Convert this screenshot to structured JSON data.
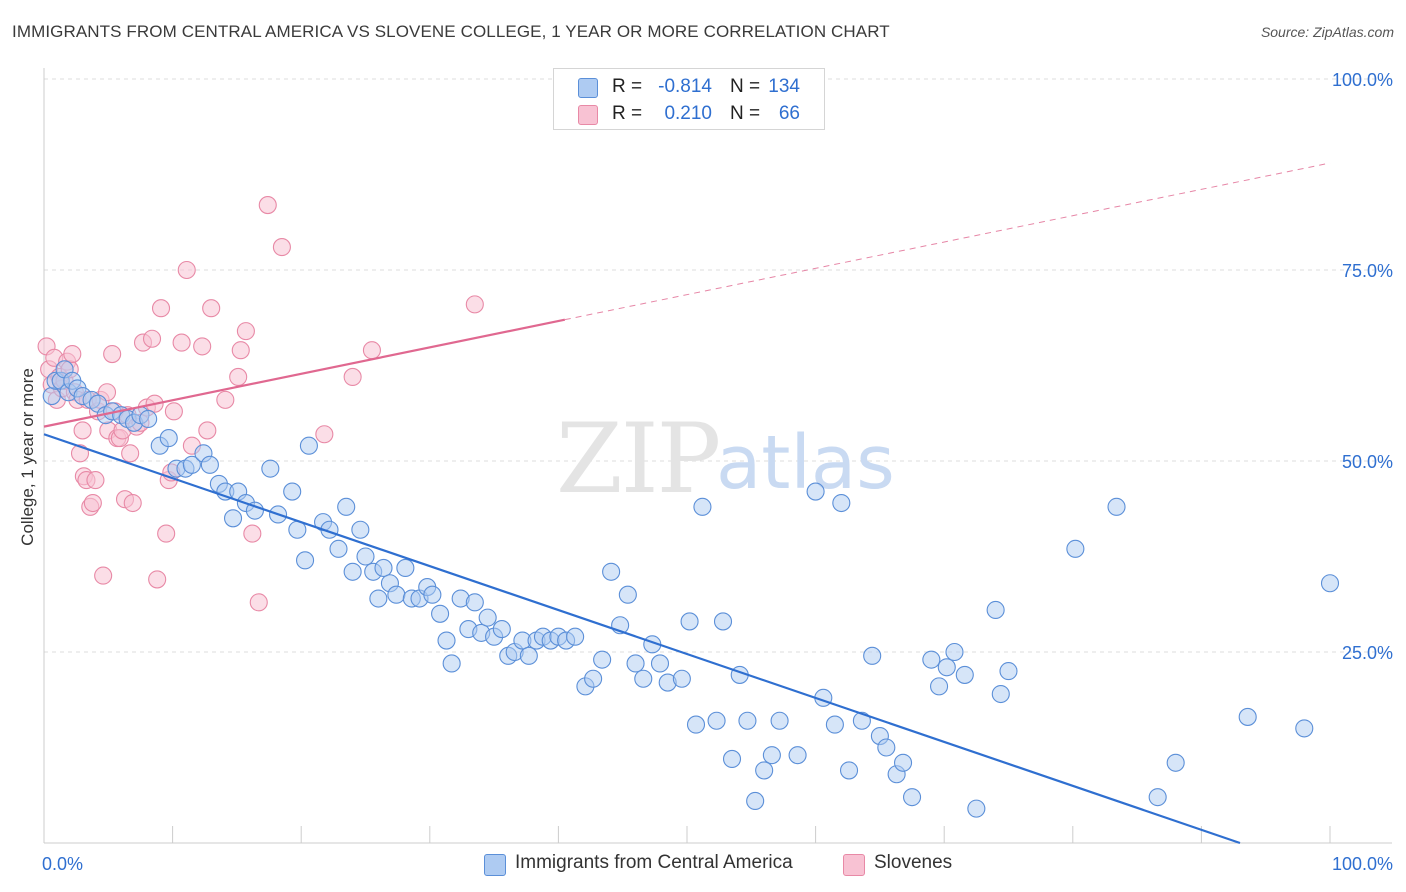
{
  "title": "IMMIGRANTS FROM CENTRAL AMERICA VS SLOVENE COLLEGE, 1 YEAR OR MORE CORRELATION CHART",
  "source": "Source: ZipAtlas.com",
  "watermark": {
    "zip": "ZIP",
    "atlas": "atlas"
  },
  "legend": {
    "series1": {
      "r_label": "R =",
      "r_value": "-0.814",
      "n_label": "N =",
      "n_value": "134"
    },
    "series2": {
      "r_label": "R =",
      "r_value": "0.210",
      "n_label": "N =",
      "n_value": "66"
    }
  },
  "bottom_legend": {
    "series1": "Immigrants from Central America",
    "series2": "Slovenes"
  },
  "colors": {
    "blue_fill": "#aecbf2",
    "blue_stroke": "#5b8fd8",
    "blue_line": "#2f6fd0",
    "pink_fill": "#f8c2d3",
    "pink_stroke": "#e889a6",
    "pink_line": "#e06890",
    "axis_label": "#2f6fd0",
    "grid": "#dddddd"
  },
  "chart_data": {
    "type": "scatter",
    "title": "IMMIGRANTS FROM CENTRAL AMERICA VS SLOVENE COLLEGE, 1 YEAR OR MORE CORRELATION CHART",
    "xlabel": "",
    "ylabel": "College, 1 year or more",
    "xlim": [
      0,
      100
    ],
    "ylim": [
      0,
      100
    ],
    "x_tick_labels": [
      "0.0%",
      "100.0%"
    ],
    "y_tick_labels": [
      "25.0%",
      "50.0%",
      "75.0%",
      "100.0%"
    ],
    "y_ticks": [
      25,
      50,
      75,
      100
    ],
    "series": [
      {
        "name": "Immigrants from Central America",
        "r": -0.814,
        "n": 134,
        "trend": {
          "x0": 0,
          "y0": 53.5,
          "x1": 93,
          "y1": 0,
          "dashed_to": null
        },
        "points": [
          [
            0.6,
            58.5
          ],
          [
            0.9,
            60.5
          ],
          [
            1.3,
            60.5
          ],
          [
            1.6,
            62
          ],
          [
            1.9,
            59
          ],
          [
            2.2,
            60.5
          ],
          [
            2.6,
            59.5
          ],
          [
            3,
            58.5
          ],
          [
            3.7,
            58
          ],
          [
            4.2,
            57.5
          ],
          [
            4.8,
            56
          ],
          [
            5.3,
            56.5
          ],
          [
            6,
            56
          ],
          [
            6.5,
            55.5
          ],
          [
            7,
            55
          ],
          [
            7.5,
            56
          ],
          [
            8.1,
            55.5
          ],
          [
            9,
            52
          ],
          [
            9.7,
            53
          ],
          [
            10.3,
            49
          ],
          [
            11,
            49
          ],
          [
            11.5,
            49.5
          ],
          [
            12.4,
            51
          ],
          [
            12.9,
            49.5
          ],
          [
            13.6,
            47
          ],
          [
            14.1,
            46
          ],
          [
            14.7,
            42.5
          ],
          [
            15.1,
            46
          ],
          [
            15.7,
            44.5
          ],
          [
            16.4,
            43.5
          ],
          [
            17.6,
            49
          ],
          [
            18.2,
            43
          ],
          [
            19.3,
            46
          ],
          [
            19.7,
            41
          ],
          [
            20.3,
            37
          ],
          [
            20.6,
            52
          ],
          [
            21.7,
            42
          ],
          [
            22.2,
            41
          ],
          [
            22.9,
            38.5
          ],
          [
            23.5,
            44
          ],
          [
            24,
            35.5
          ],
          [
            24.6,
            41
          ],
          [
            25,
            37.5
          ],
          [
            25.6,
            35.5
          ],
          [
            26,
            32
          ],
          [
            26.4,
            36
          ],
          [
            26.9,
            34
          ],
          [
            27.4,
            32.5
          ],
          [
            28.1,
            36
          ],
          [
            28.6,
            32
          ],
          [
            29.2,
            32
          ],
          [
            29.8,
            33.5
          ],
          [
            30.2,
            32.5
          ],
          [
            30.8,
            30
          ],
          [
            31.3,
            26.5
          ],
          [
            31.7,
            23.5
          ],
          [
            32.4,
            32
          ],
          [
            33,
            28
          ],
          [
            33.5,
            31.5
          ],
          [
            34,
            27.5
          ],
          [
            34.5,
            29.5
          ],
          [
            35,
            27
          ],
          [
            35.6,
            28
          ],
          [
            36.1,
            24.5
          ],
          [
            36.6,
            25
          ],
          [
            37.2,
            26.5
          ],
          [
            37.7,
            24.5
          ],
          [
            38.3,
            26.5
          ],
          [
            38.8,
            27
          ],
          [
            39.4,
            26.5
          ],
          [
            40,
            27
          ],
          [
            40.6,
            26.5
          ],
          [
            41.3,
            27
          ],
          [
            42.1,
            20.5
          ],
          [
            42.7,
            21.5
          ],
          [
            43.4,
            24
          ],
          [
            44.1,
            35.5
          ],
          [
            44.8,
            28.5
          ],
          [
            45.4,
            32.5
          ],
          [
            46,
            23.5
          ],
          [
            46.6,
            21.5
          ],
          [
            47.3,
            26
          ],
          [
            47.9,
            23.5
          ],
          [
            48.5,
            21
          ],
          [
            49.6,
            21.5
          ],
          [
            50.2,
            29
          ],
          [
            50.7,
            15.5
          ],
          [
            51.2,
            44
          ],
          [
            52.3,
            16
          ],
          [
            52.8,
            29
          ],
          [
            53.5,
            11
          ],
          [
            54.1,
            22
          ],
          [
            54.7,
            16
          ],
          [
            55.3,
            5.5
          ],
          [
            56,
            9.5
          ],
          [
            56.6,
            11.5
          ],
          [
            57.2,
            16
          ],
          [
            58.6,
            11.5
          ],
          [
            60,
            46
          ],
          [
            60.6,
            19
          ],
          [
            61.5,
            15.5
          ],
          [
            62,
            44.5
          ],
          [
            62.6,
            9.5
          ],
          [
            63.6,
            16
          ],
          [
            64.4,
            24.5
          ],
          [
            65,
            14
          ],
          [
            65.5,
            12.5
          ],
          [
            66.3,
            9
          ],
          [
            66.8,
            10.5
          ],
          [
            67.5,
            6
          ],
          [
            69,
            24
          ],
          [
            69.6,
            20.5
          ],
          [
            70.2,
            23
          ],
          [
            70.8,
            25
          ],
          [
            71.6,
            22
          ],
          [
            72.5,
            4.5
          ],
          [
            74,
            30.5
          ],
          [
            74.4,
            19.5
          ],
          [
            75,
            22.5
          ],
          [
            80.2,
            38.5
          ],
          [
            83.4,
            44
          ],
          [
            86.6,
            6
          ],
          [
            88,
            10.5
          ],
          [
            93.6,
            16.5
          ],
          [
            98,
            15
          ],
          [
            100,
            34
          ]
        ]
      },
      {
        "name": "Slovenes",
        "r": 0.21,
        "n": 66,
        "trend": {
          "x0": 0,
          "y0": 54.5,
          "x1": 40.5,
          "y1": 68.5,
          "dashed_to": [
            100,
            89
          ]
        },
        "points": [
          [
            0.2,
            65
          ],
          [
            0.4,
            62
          ],
          [
            0.6,
            60
          ],
          [
            0.8,
            63.5
          ],
          [
            1,
            58
          ],
          [
            1.2,
            61
          ],
          [
            1.4,
            59.5
          ],
          [
            1.6,
            60.5
          ],
          [
            1.8,
            63
          ],
          [
            2,
            62
          ],
          [
            2.2,
            64
          ],
          [
            2.4,
            59
          ],
          [
            2.6,
            58
          ],
          [
            2.8,
            51
          ],
          [
            3,
            54
          ],
          [
            3.1,
            48
          ],
          [
            3.3,
            47.5
          ],
          [
            3.4,
            58
          ],
          [
            3.6,
            44
          ],
          [
            3.8,
            44.5
          ],
          [
            4,
            47.5
          ],
          [
            4.2,
            56.5
          ],
          [
            4.4,
            58
          ],
          [
            4.6,
            35
          ],
          [
            4.9,
            59
          ],
          [
            5,
            54
          ],
          [
            5.3,
            64
          ],
          [
            5.5,
            56.5
          ],
          [
            5.7,
            53
          ],
          [
            5.9,
            53
          ],
          [
            6.1,
            54
          ],
          [
            6.3,
            45
          ],
          [
            6.5,
            56
          ],
          [
            6.7,
            51
          ],
          [
            6.9,
            44.5
          ],
          [
            7.2,
            54.5
          ],
          [
            7.5,
            55
          ],
          [
            7.7,
            65.5
          ],
          [
            8,
            57
          ],
          [
            8.4,
            66
          ],
          [
            8.6,
            57.5
          ],
          [
            8.8,
            34.5
          ],
          [
            9.1,
            70
          ],
          [
            9.5,
            40.5
          ],
          [
            9.7,
            47.5
          ],
          [
            9.9,
            48.5
          ],
          [
            10.1,
            56.5
          ],
          [
            10.7,
            65.5
          ],
          [
            11.1,
            75
          ],
          [
            11.5,
            52
          ],
          [
            12.3,
            65
          ],
          [
            12.7,
            54
          ],
          [
            13,
            70
          ],
          [
            14.1,
            58
          ],
          [
            15.1,
            61
          ],
          [
            15.3,
            64.5
          ],
          [
            15.7,
            67
          ],
          [
            16.2,
            40.5
          ],
          [
            16.7,
            31.5
          ],
          [
            17.4,
            83.5
          ],
          [
            18.5,
            78
          ],
          [
            21.8,
            53.5
          ],
          [
            24,
            61
          ],
          [
            25.5,
            64.5
          ],
          [
            33.5,
            70.5
          ]
        ]
      }
    ]
  }
}
